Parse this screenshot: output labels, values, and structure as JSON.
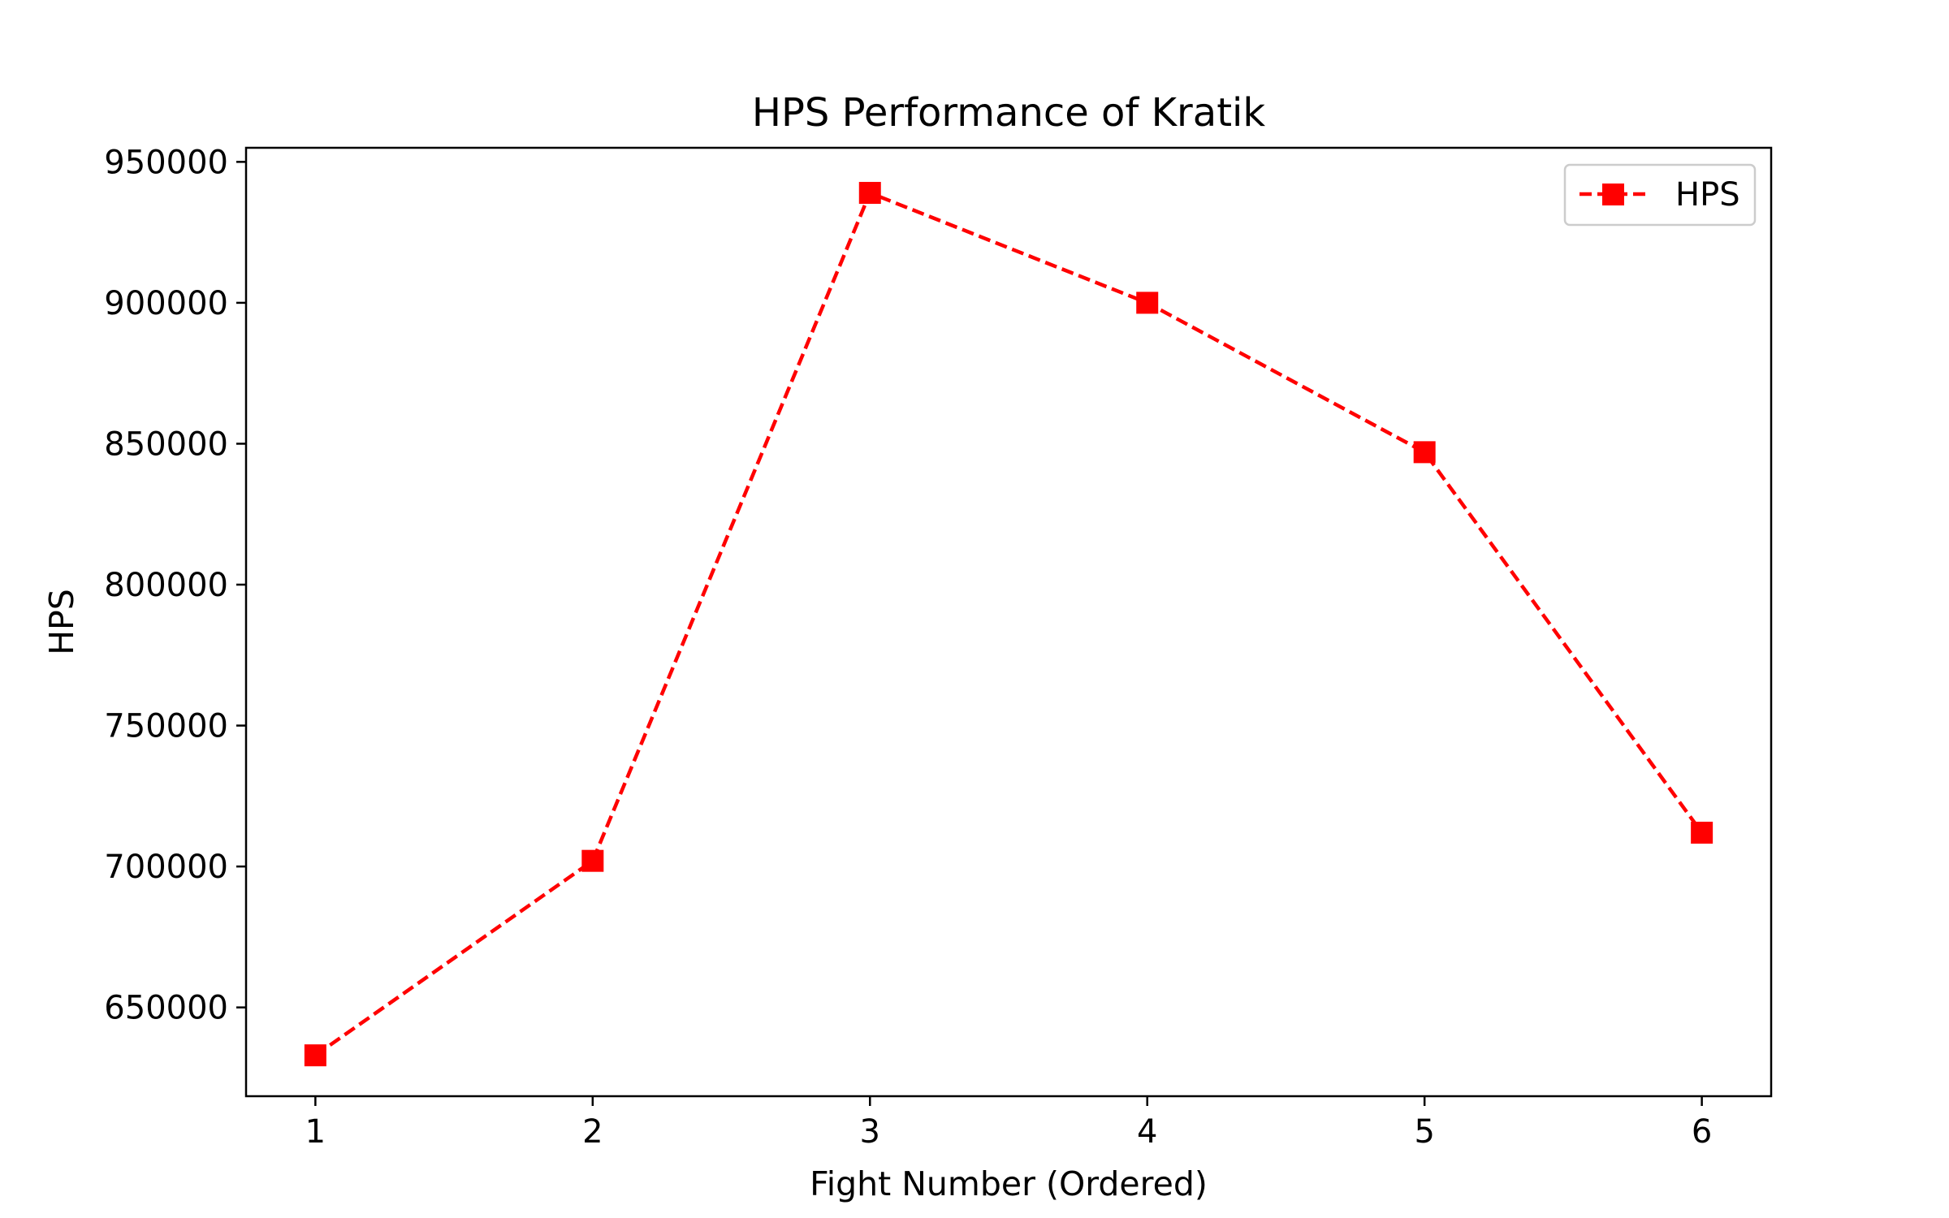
{
  "chart_data": {
    "type": "line",
    "title": "HPS Performance of Kratik",
    "xlabel": "Fight Number (Ordered)",
    "ylabel": "HPS",
    "x": [
      1,
      2,
      3,
      4,
      5,
      6
    ],
    "series": [
      {
        "name": "HPS",
        "values": [
          633000,
          702000,
          939000,
          900000,
          847000,
          712000
        ],
        "color": "#ff0000",
        "line_style": "dashed",
        "marker": "square"
      }
    ],
    "xlim": [
      0.75,
      6.25
    ],
    "ylim": [
      618500,
      955000
    ],
    "x_ticks": [
      "1",
      "2",
      "3",
      "4",
      "5",
      "6"
    ],
    "y_ticks": [
      "650000",
      "700000",
      "750000",
      "800000",
      "850000",
      "900000",
      "950000"
    ],
    "grid": false,
    "legend": "top-right"
  }
}
